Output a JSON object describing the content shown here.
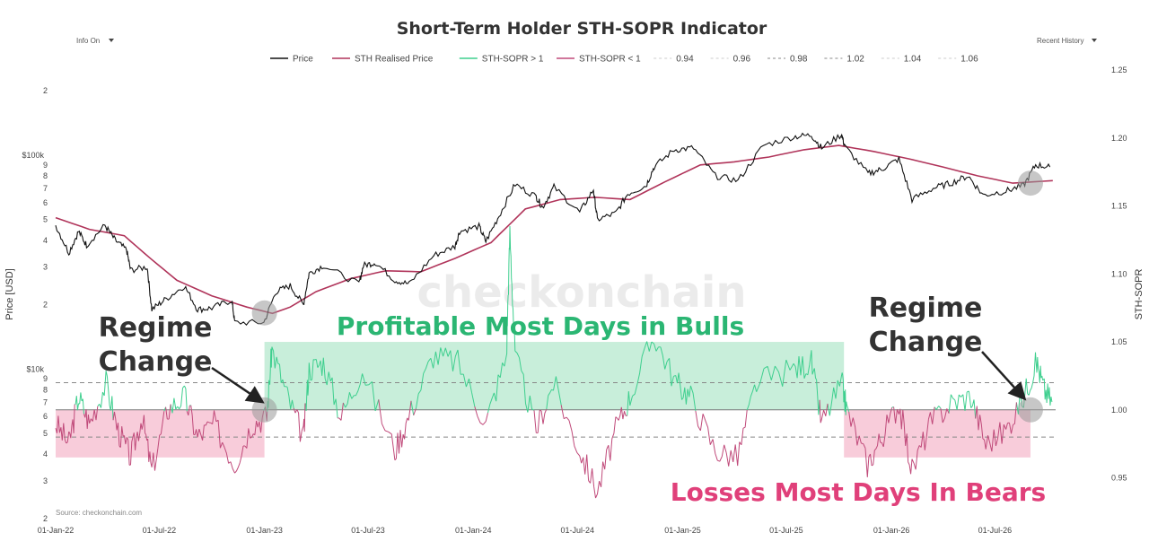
{
  "chart_data": {
    "type": "line",
    "title": "Short-Term Holder STH-SOPR Indicator",
    "controls": {
      "info_label": "Info On",
      "history_label": "Recent History",
      "dropdown_icon": "caret-down-icon"
    },
    "legend": {
      "placement": "top-center",
      "entries": [
        {
          "name": "Price",
          "color": "#111111",
          "style": "solid"
        },
        {
          "name": "STH Realised Price",
          "color": "#b0345a",
          "style": "solid"
        },
        {
          "name": "STH-SOPR > 1",
          "color": "#3ecf8e",
          "style": "solid"
        },
        {
          "name": "STH-SOPR < 1",
          "color": "#c04a7a",
          "style": "solid"
        },
        {
          "name": "0.94",
          "color": "#cccccc",
          "style": "dashed"
        },
        {
          "name": "0.96",
          "color": "#cccccc",
          "style": "dashed"
        },
        {
          "name": "0.98",
          "color": "#888888",
          "style": "dashed"
        },
        {
          "name": "1.02",
          "color": "#888888",
          "style": "dashed"
        },
        {
          "name": "1.04",
          "color": "#cccccc",
          "style": "dashed"
        },
        {
          "name": "1.06",
          "color": "#cccccc",
          "style": "dashed"
        }
      ]
    },
    "x_ticks": [
      "01-Jan-22",
      "01-Jul-22",
      "01-Jan-23",
      "01-Jul-23",
      "01-Jan-24",
      "01-Jul-24",
      "01-Jan-25",
      "01-Jul-25",
      "01-Jan-26",
      "01-Jul-26"
    ],
    "x_range": [
      "2022-01-01",
      "2026-10-15"
    ],
    "y_left": {
      "label": "Price [USD]",
      "scale": "log",
      "range": [
        2000,
        250000
      ],
      "major_ticks": [
        {
          "value": 10000,
          "label": "$10k"
        },
        {
          "value": 100000,
          "label": "$100k"
        }
      ],
      "minor_ticks": [
        {
          "value": 2000,
          "label": "2"
        },
        {
          "value": 3000,
          "label": "3"
        },
        {
          "value": 4000,
          "label": "4"
        },
        {
          "value": 5000,
          "label": "5"
        },
        {
          "value": 6000,
          "label": "6"
        },
        {
          "value": 7000,
          "label": "7"
        },
        {
          "value": 8000,
          "label": "8"
        },
        {
          "value": 9000,
          "label": "9"
        },
        {
          "value": 20000,
          "label": "2"
        },
        {
          "value": 30000,
          "label": "3"
        },
        {
          "value": 40000,
          "label": "4"
        },
        {
          "value": 50000,
          "label": "5"
        },
        {
          "value": 60000,
          "label": "6"
        },
        {
          "value": 70000,
          "label": "7"
        },
        {
          "value": 80000,
          "label": "8"
        },
        {
          "value": 90000,
          "label": "9"
        },
        {
          "value": 200000,
          "label": "2"
        }
      ]
    },
    "y_right": {
      "label": "STH-SOPR",
      "range": [
        0.92,
        1.25
      ],
      "ticks": [
        "0.95",
        "1.00",
        "1.05",
        "1.10",
        "1.15",
        "1.20",
        "1.25"
      ]
    },
    "reference_lines": [
      {
        "value": 0.98,
        "style": "dashed"
      },
      {
        "value": 1.0,
        "style": "solid"
      },
      {
        "value": 1.02,
        "style": "dashed"
      }
    ],
    "series": [
      {
        "name": "Price",
        "axis": "left",
        "points": [
          [
            "2022-01-01",
            47000
          ],
          [
            "2022-01-24",
            35000
          ],
          [
            "2022-02-10",
            44000
          ],
          [
            "2022-02-24",
            38000
          ],
          [
            "2022-03-28",
            47000
          ],
          [
            "2022-04-15",
            40000
          ],
          [
            "2022-05-05",
            36000
          ],
          [
            "2022-05-12",
            29000
          ],
          [
            "2022-06-10",
            30000
          ],
          [
            "2022-06-18",
            19000
          ],
          [
            "2022-07-10",
            21000
          ],
          [
            "2022-08-14",
            24500
          ],
          [
            "2022-09-06",
            19000
          ],
          [
            "2022-10-01",
            19300
          ],
          [
            "2022-11-05",
            21000
          ],
          [
            "2022-11-10",
            16500
          ],
          [
            "2022-12-31",
            16500
          ],
          [
            "2023-01-21",
            23000
          ],
          [
            "2023-02-15",
            24500
          ],
          [
            "2023-03-10",
            20000
          ],
          [
            "2023-03-20",
            28000
          ],
          [
            "2023-04-14",
            30500
          ],
          [
            "2023-06-15",
            25000
          ],
          [
            "2023-06-23",
            30500
          ],
          [
            "2023-07-14",
            31500
          ],
          [
            "2023-08-17",
            26000
          ],
          [
            "2023-09-11",
            25000
          ],
          [
            "2023-10-24",
            34000
          ],
          [
            "2023-11-30",
            37500
          ],
          [
            "2023-12-08",
            44000
          ],
          [
            "2024-01-11",
            46500
          ],
          [
            "2024-01-23",
            39500
          ],
          [
            "2024-02-15",
            52000
          ],
          [
            "2024-03-14",
            73000
          ],
          [
            "2024-04-20",
            64000
          ],
          [
            "2024-05-01",
            57000
          ],
          [
            "2024-05-21",
            71000
          ],
          [
            "2024-07-05",
            54000
          ],
          [
            "2024-07-29",
            69000
          ],
          [
            "2024-08-05",
            50000
          ],
          [
            "2024-09-06",
            53500
          ],
          [
            "2024-09-27",
            66000
          ],
          [
            "2024-10-29",
            72000
          ],
          [
            "2024-11-12",
            88000
          ],
          [
            "2024-12-17",
            106000
          ],
          [
            "2025-01-20",
            108000
          ],
          [
            "2025-02-27",
            80000
          ],
          [
            "2025-04-08",
            76000
          ],
          [
            "2025-05-22",
            111000
          ],
          [
            "2025-07-14",
            122000
          ],
          [
            "2025-08-14",
            124000
          ],
          [
            "2025-09-01",
            108000
          ],
          [
            "2025-10-06",
            125000
          ],
          [
            "2025-10-11",
            110000
          ],
          [
            "2025-11-21",
            82000
          ],
          [
            "2025-12-15",
            86000
          ],
          [
            "2026-01-14",
            96000
          ],
          [
            "2026-02-06",
            62000
          ],
          [
            "2026-03-15",
            70000
          ],
          [
            "2026-04-15",
            74000
          ],
          [
            "2026-05-15",
            80000
          ],
          [
            "2026-06-10",
            65000
          ],
          [
            "2026-07-20",
            68000
          ],
          [
            "2026-08-20",
            72000
          ],
          [
            "2026-09-10",
            90000
          ],
          [
            "2026-10-05",
            88000
          ]
        ]
      },
      {
        "name": "STH Realised Price",
        "axis": "left",
        "points": [
          [
            "2022-01-01",
            51000
          ],
          [
            "2022-03-01",
            45000
          ],
          [
            "2022-05-01",
            42000
          ],
          [
            "2022-06-15",
            33000
          ],
          [
            "2022-08-01",
            26000
          ],
          [
            "2022-10-01",
            22000
          ],
          [
            "2022-12-01",
            19500
          ],
          [
            "2023-01-15",
            18200
          ],
          [
            "2023-02-15",
            19500
          ],
          [
            "2023-04-01",
            23000
          ],
          [
            "2023-06-01",
            26500
          ],
          [
            "2023-08-01",
            28800
          ],
          [
            "2023-10-01",
            28500
          ],
          [
            "2023-12-01",
            33000
          ],
          [
            "2024-02-01",
            39000
          ],
          [
            "2024-04-01",
            56000
          ],
          [
            "2024-06-01",
            62000
          ],
          [
            "2024-08-01",
            63500
          ],
          [
            "2024-10-01",
            62000
          ],
          [
            "2024-12-01",
            75000
          ],
          [
            "2025-02-01",
            90000
          ],
          [
            "2025-04-01",
            93000
          ],
          [
            "2025-06-01",
            98000
          ],
          [
            "2025-08-01",
            106000
          ],
          [
            "2025-10-01",
            111000
          ],
          [
            "2025-12-01",
            104000
          ],
          [
            "2026-02-01",
            96000
          ],
          [
            "2026-04-01",
            88000
          ],
          [
            "2026-06-01",
            80000
          ],
          [
            "2026-08-01",
            74000
          ],
          [
            "2026-10-10",
            76000
          ]
        ]
      },
      {
        "name": "STH-SOPR",
        "axis": "right",
        "points": [
          [
            "2022-01-01",
            0.99
          ],
          [
            "2022-01-24",
            0.975
          ],
          [
            "2022-02-10",
            1.01
          ],
          [
            "2022-03-01",
            0.99
          ],
          [
            "2022-03-30",
            1.02
          ],
          [
            "2022-04-20",
            0.985
          ],
          [
            "2022-05-12",
            0.965
          ],
          [
            "2022-06-01",
            0.995
          ],
          [
            "2022-06-18",
            0.955
          ],
          [
            "2022-07-15",
            1.0
          ],
          [
            "2022-08-14",
            1.01
          ],
          [
            "2022-09-06",
            0.98
          ],
          [
            "2022-10-05",
            0.99
          ],
          [
            "2022-11-10",
            0.96
          ],
          [
            "2022-12-10",
            0.99
          ],
          [
            "2023-01-05",
            0.995
          ],
          [
            "2023-01-14",
            1.045
          ],
          [
            "2023-02-10",
            1.01
          ],
          [
            "2023-03-10",
            0.98
          ],
          [
            "2023-03-20",
            1.03
          ],
          [
            "2023-04-14",
            1.035
          ],
          [
            "2023-05-15",
            0.995
          ],
          [
            "2023-06-21",
            1.03
          ],
          [
            "2023-08-17",
            0.97
          ],
          [
            "2023-09-10",
            0.995
          ],
          [
            "2023-10-23",
            1.04
          ],
          [
            "2023-12-05",
            1.035
          ],
          [
            "2024-01-23",
            0.99
          ],
          [
            "2024-02-28",
            1.04
          ],
          [
            "2024-03-05",
            1.13
          ],
          [
            "2024-03-14",
            1.04
          ],
          [
            "2024-04-20",
            0.985
          ],
          [
            "2024-05-20",
            1.02
          ],
          [
            "2024-07-05",
            0.97
          ],
          [
            "2024-08-05",
            0.94
          ],
          [
            "2024-09-06",
            0.985
          ],
          [
            "2024-10-01",
            1.01
          ],
          [
            "2024-11-12",
            1.055
          ],
          [
            "2024-12-20",
            1.02
          ],
          [
            "2025-01-15",
            1.01
          ],
          [
            "2025-02-27",
            0.97
          ],
          [
            "2025-04-07",
            0.965
          ],
          [
            "2025-05-10",
            1.02
          ],
          [
            "2025-07-14",
            1.03
          ],
          [
            "2025-08-14",
            1.035
          ],
          [
            "2025-09-01",
            0.99
          ],
          [
            "2025-10-06",
            1.02
          ],
          [
            "2025-10-15",
            1.0
          ],
          [
            "2025-11-20",
            0.96
          ],
          [
            "2025-12-15",
            0.98
          ],
          [
            "2026-01-14",
            1.005
          ],
          [
            "2026-02-06",
            0.955
          ],
          [
            "2026-03-10",
            0.99
          ],
          [
            "2026-04-15",
            1.005
          ],
          [
            "2026-05-20",
            1.01
          ],
          [
            "2026-06-15",
            0.975
          ],
          [
            "2026-07-20",
            0.985
          ],
          [
            "2026-08-20",
            1.01
          ],
          [
            "2026-09-12",
            1.035
          ],
          [
            "2026-09-25",
            1.015
          ],
          [
            "2026-10-10",
            1.005
          ]
        ]
      }
    ],
    "regions": [
      {
        "label": "",
        "color": "#f7c6d6",
        "from": "2022-01-01",
        "to": "2023-01-01",
        "y": [
          0.965,
          1.0
        ]
      },
      {
        "label": "Profitable Most Days in Bulls",
        "color": "#c2ecd6",
        "from": "2023-01-01",
        "to": "2025-10-10",
        "y": [
          1.0,
          1.05
        ]
      },
      {
        "label": "Losses Most Days In Bears",
        "color": "#f7c6d6",
        "from": "2025-10-10",
        "to": "2026-09-01",
        "y": [
          0.965,
          1.0
        ]
      }
    ],
    "annotations": [
      {
        "text": "Regime Change",
        "at": [
          "2023-01-01",
          1.0
        ]
      },
      {
        "text": "Regime Change",
        "at": [
          "2026-09-01",
          1.0
        ]
      }
    ],
    "markers": [
      {
        "at": [
          "2023-01-01",
          18300
        ],
        "axis": "left"
      },
      {
        "at": [
          "2023-01-01",
          1.0
        ],
        "axis": "right"
      },
      {
        "at": [
          "2026-09-01",
          74000
        ],
        "axis": "left"
      },
      {
        "at": [
          "2026-09-01",
          1.0
        ],
        "axis": "right"
      }
    ],
    "watermark": "checkonchain",
    "source": "Source: checkonchain.com"
  }
}
